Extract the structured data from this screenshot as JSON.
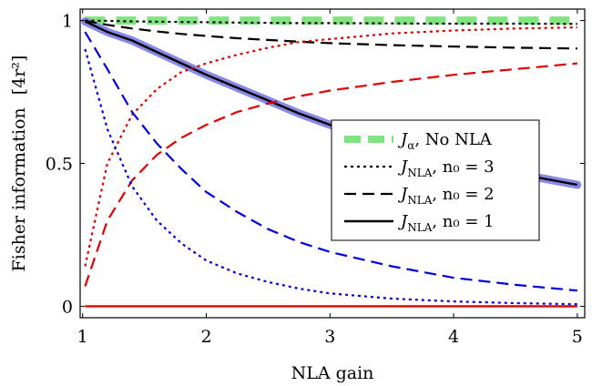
{
  "chart_data": {
    "type": "line",
    "xlabel": "NLA gain",
    "ylabel": "Fisher information",
    "ylabel_unit": "[4r²]",
    "xlim": [
      0.98,
      5.06
    ],
    "ylim": [
      -0.04,
      1.04
    ],
    "x_ticks": [
      1,
      2,
      3,
      4,
      5
    ],
    "y_ticks": [
      0,
      0.5,
      1
    ],
    "x_tick_labels": [
      "1",
      "2",
      "3",
      "4",
      "5"
    ],
    "y_tick_labels": [
      "0",
      "0.5",
      "1"
    ],
    "grid": false,
    "legend_position": "center-right",
    "x": [
      1.02,
      1.2,
      1.4,
      1.6,
      1.8,
      2.0,
      2.25,
      2.5,
      2.75,
      3.0,
      3.5,
      4.0,
      4.5,
      5.0
    ],
    "series": [
      {
        "role": "J_alpha",
        "color": "#7fe57f",
        "style": "dashed-thick",
        "y": [
          1,
          1,
          1,
          1,
          1,
          1,
          1,
          1,
          1,
          1,
          1,
          1,
          1,
          1
        ]
      },
      {
        "role": "nla_n0_1_highlight",
        "color": "#8888e6",
        "style": "thick",
        "y": [
          0.997,
          0.96,
          0.93,
          0.89,
          0.85,
          0.81,
          0.765,
          0.72,
          0.675,
          0.635,
          0.565,
          0.51,
          0.465,
          0.425
        ]
      },
      {
        "role": "nla_n0_1",
        "color": "#000000",
        "style": "solid",
        "y": [
          0.997,
          0.96,
          0.93,
          0.89,
          0.85,
          0.81,
          0.765,
          0.72,
          0.675,
          0.635,
          0.565,
          0.51,
          0.465,
          0.425
        ]
      },
      {
        "role": "nla_n0_2",
        "color": "#000000",
        "style": "dashed",
        "y": [
          0.999,
          0.985,
          0.972,
          0.962,
          0.953,
          0.946,
          0.938,
          0.932,
          0.926,
          0.921,
          0.914,
          0.909,
          0.905,
          0.902
        ]
      },
      {
        "role": "nla_n0_3",
        "color": "#000000",
        "style": "dotted",
        "y": [
          1.0,
          0.999,
          0.997,
          0.996,
          0.995,
          0.994,
          0.993,
          0.992,
          0.991,
          0.991,
          0.99,
          0.989,
          0.989,
          0.988
        ]
      },
      {
        "role": "red_dashed",
        "color": "#e00000",
        "style": "dashed",
        "y": [
          0.07,
          0.3,
          0.44,
          0.53,
          0.59,
          0.635,
          0.68,
          0.71,
          0.735,
          0.755,
          0.785,
          0.81,
          0.83,
          0.85
        ]
      },
      {
        "role": "red_dotted",
        "color": "#e00000",
        "style": "dotted",
        "y": [
          0.14,
          0.5,
          0.67,
          0.76,
          0.82,
          0.85,
          0.88,
          0.905,
          0.925,
          0.935,
          0.955,
          0.965,
          0.972,
          0.976
        ]
      },
      {
        "role": "red_solid",
        "color": "#e00000",
        "style": "solid",
        "y": [
          0,
          0,
          0,
          0,
          0,
          0,
          0,
          0,
          0,
          0,
          0,
          0,
          0,
          0
        ]
      },
      {
        "role": "blue_dashed",
        "color": "#0000dd",
        "style": "dashed",
        "y": [
          0.96,
          0.83,
          0.68,
          0.57,
          0.48,
          0.4,
          0.33,
          0.27,
          0.225,
          0.19,
          0.14,
          0.1,
          0.075,
          0.055
        ]
      },
      {
        "role": "blue_dotted",
        "color": "#0000dd",
        "style": "dotted",
        "y": [
          0.9,
          0.62,
          0.42,
          0.3,
          0.22,
          0.16,
          0.115,
          0.085,
          0.062,
          0.045,
          0.027,
          0.017,
          0.011,
          0.007
        ]
      }
    ],
    "legend": [
      {
        "key": "J_alpha",
        "label_main": "J",
        "label_sub": "α",
        "label_rest": ", No NLA",
        "color": "#7fe57f",
        "style": "dashed-thick"
      },
      {
        "key": "nla_n0_3",
        "label_main": "J",
        "label_sub": "NLA",
        "label_rest": ", n₀ = 3",
        "color": "#000000",
        "style": "dotted"
      },
      {
        "key": "nla_n0_2",
        "label_main": "J",
        "label_sub": "NLA",
        "label_rest": ", n₀ = 2",
        "color": "#000000",
        "style": "dashed"
      },
      {
        "key": "nla_n0_1",
        "label_main": "J",
        "label_sub": "NLA",
        "label_rest": ", n₀ = 1",
        "color": "#000000",
        "style": "solid"
      }
    ]
  }
}
